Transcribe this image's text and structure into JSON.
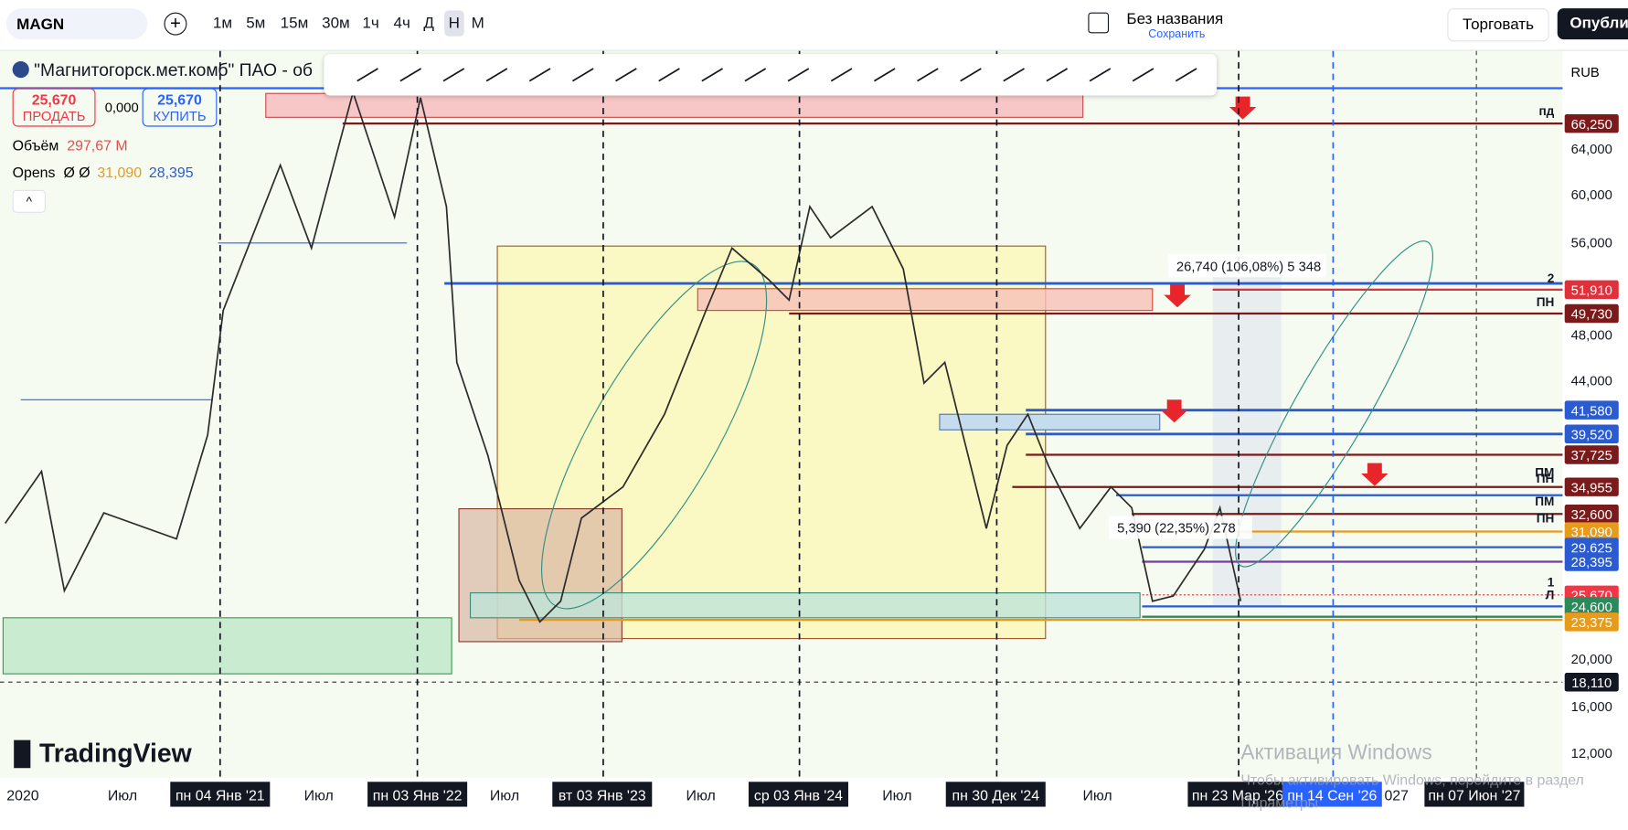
{
  "top_toolbar": {
    "symbol": "MAGN",
    "intervals": [
      "1м",
      "5м",
      "15м",
      "30м",
      "1ч",
      "4ч",
      "Д",
      "Н",
      "М"
    ],
    "layout_name": "Без названия",
    "save": "Сохранить",
    "trade": "Торговать",
    "publish": "Опубли"
  },
  "legend": {
    "title": "\"Магнитогорск.мет.комб\" ПАО - об",
    "sell_price": "25,670",
    "sell_label": "ПРОДАТЬ",
    "spread": "0,000",
    "buy_price": "25,670",
    "buy_label": "КУПИТЬ",
    "volume_label": "Объём",
    "volume_value": "297,67 M",
    "indicator": "Opens",
    "indicator_empty": "Ø Ø",
    "indicator_values": [
      "31,090",
      "28,395"
    ]
  },
  "annotations": [
    "26,740 (106,08%) 5 348",
    "5,390 (22,35%) 278"
  ],
  "level_marks": [
    "пд",
    "2",
    "ПН",
    "ПМ",
    "ПН",
    "ПМ",
    "ПН",
    "1",
    "Л"
  ],
  "price_axis": {
    "currency": "RUB",
    "labels": [
      {
        "text": "66,250",
        "color": "#7b1a1a"
      },
      {
        "text": "64,000"
      },
      {
        "text": "60,000"
      },
      {
        "text": "56,000"
      },
      {
        "text": "51,910",
        "color": "#e0303a"
      },
      {
        "text": "49,730",
        "color": "#7b1a1a"
      },
      {
        "text": "48,000"
      },
      {
        "text": "44,000"
      },
      {
        "text": "41,580",
        "color": "#2a5bd0"
      },
      {
        "text": "39,520",
        "color": "#2a5bd0"
      },
      {
        "text": "37,725",
        "color": "#7b1a1a"
      },
      {
        "text": "34,955",
        "color": "#7b1a1a"
      },
      {
        "text": "32,600",
        "color": "#7b1a1a"
      },
      {
        "text": "31,090",
        "color": "#e89a1a"
      },
      {
        "text": "29,625",
        "color": "#2a5bd0"
      },
      {
        "text": "28,395",
        "color": "#2a5bd0"
      },
      {
        "text": "25,670",
        "color": "#f23645"
      },
      {
        "text": "24,600",
        "color": "#2a8a5a"
      },
      {
        "text": "23,375",
        "color": "#e89a1a"
      },
      {
        "text": "20,000"
      },
      {
        "text": "18,110",
        "color": "#131722"
      },
      {
        "text": "16,000"
      },
      {
        "text": "12,000"
      }
    ]
  },
  "time_axis": [
    {
      "text": "2020"
    },
    {
      "text": "Июл"
    },
    {
      "text": "пн 04 Янв '21",
      "highlight": "dark"
    },
    {
      "text": "Июл"
    },
    {
      "text": "пн 03 Янв '22",
      "highlight": "dark"
    },
    {
      "text": "Июл"
    },
    {
      "text": "вт 03 Янв '23",
      "highlight": "dark"
    },
    {
      "text": "Июл"
    },
    {
      "text": "ср 03 Янв '24",
      "highlight": "dark"
    },
    {
      "text": "Июл"
    },
    {
      "text": "пн 30 Дек '24",
      "highlight": "dark"
    },
    {
      "text": "Июл"
    },
    {
      "text": "пн 23 Мар '26",
      "highlight": "dark"
    },
    {
      "text": "пн 14 Сен '26",
      "highlight": "blue"
    },
    {
      "text": "027"
    },
    {
      "text": "пн 07 Июн '27",
      "highlight": "dark"
    }
  ],
  "watermark": {
    "logo": "TradingView",
    "activation_title": "Активация Windows",
    "activation_text": "Чтобы активировать Windows, перейдите в раздел",
    "activation_link": "Параметры"
  }
}
